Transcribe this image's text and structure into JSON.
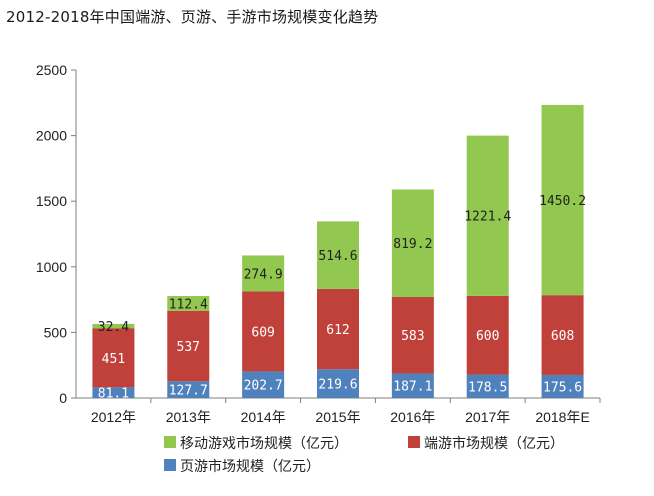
{
  "title": "2012-2018年中国端游、页游、手游市场规模变化趋势",
  "colors": {
    "mobile": "#92c84f",
    "client": "#c0403a",
    "web": "#4f81bd",
    "axis": "#7f7f7f",
    "label_light": "#ffffff",
    "label_dark": "#222222"
  },
  "chart_data": {
    "type": "bar",
    "stacked": true,
    "title": "2012-2018年中国端游、页游、手游市场规模变化趋势",
    "categories": [
      "2012年",
      "2013年",
      "2014年",
      "2015年",
      "2016年",
      "2017年",
      "2018年E"
    ],
    "ylim": [
      0,
      2500
    ],
    "yticks": [
      0,
      500,
      1000,
      1500,
      2000,
      2500
    ],
    "grid": false,
    "legend_position": "bottom",
    "series": [
      {
        "name": "页游市场规模（亿元）",
        "color": "#4f81bd",
        "values": [
          81.1,
          127.7,
          202.7,
          219.6,
          187.1,
          178.5,
          175.6
        ],
        "labels": [
          "81.1",
          "127.7",
          "202.7",
          "219.6",
          "187.1",
          "178.5",
          "175.6"
        ]
      },
      {
        "name": "端游市场规模（亿元）",
        "color": "#c0403a",
        "values": [
          451,
          537,
          609,
          612,
          583,
          600,
          608
        ],
        "labels": [
          "451",
          "537",
          "609",
          "612",
          "583",
          "600",
          "608"
        ]
      },
      {
        "name": "移动游戏市场规模（亿元）",
        "color": "#92c84f",
        "values": [
          32.4,
          112.4,
          274.9,
          514.6,
          819.2,
          1221.4,
          1450.2
        ],
        "labels": [
          "32.4",
          "112.4",
          "274.9",
          "514.6",
          "819.2",
          "1221.4",
          "1450.2"
        ]
      }
    ]
  }
}
